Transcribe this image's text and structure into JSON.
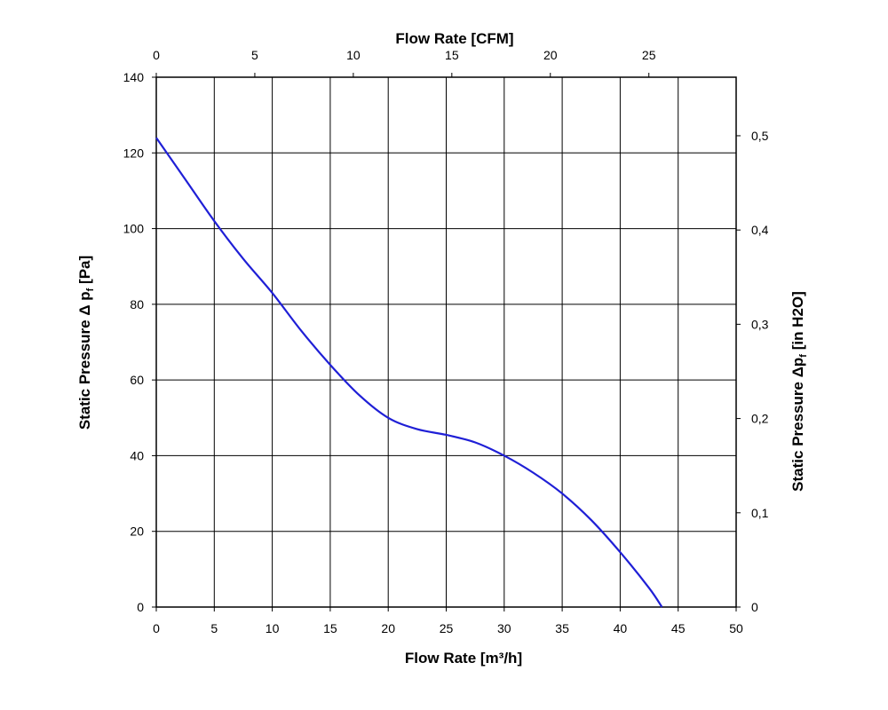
{
  "chart_data": {
    "type": "line",
    "xlabel": "Flow Rate [m³/h]",
    "x2label": "Flow Rate [CFM]",
    "ylabel": {
      "pre": "Static Pressure Δ p",
      "sub": "f",
      "post": " [Pa]"
    },
    "y2label": {
      "pre": "Static Pressure Δp",
      "sub": "f",
      "post": " [in H2O]"
    },
    "xlim": [
      0,
      50
    ],
    "ylim": [
      0,
      140
    ],
    "x2lim": [
      0,
      29.43
    ],
    "y2lim": [
      0,
      0.5621
    ],
    "xticks": [
      "0",
      "5",
      "10",
      "15",
      "20",
      "25",
      "30",
      "35",
      "40",
      "45",
      "50"
    ],
    "yticks": [
      "0",
      "20",
      "40",
      "60",
      "80",
      "100",
      "120",
      "140"
    ],
    "x2ticks": [
      {
        "value": 0,
        "label": "0"
      },
      {
        "value": 5,
        "label": "5"
      },
      {
        "value": 10,
        "label": "10"
      },
      {
        "value": 15,
        "label": "15"
      },
      {
        "value": 20,
        "label": "20"
      },
      {
        "value": 25,
        "label": "25"
      }
    ],
    "y2ticks": [
      {
        "value": 0,
        "label": "0"
      },
      {
        "value": 0.1,
        "label": "0,1"
      },
      {
        "value": 0.2,
        "label": "0,2"
      },
      {
        "value": 0.3,
        "label": "0,3"
      },
      {
        "value": 0.4,
        "label": "0,4"
      },
      {
        "value": 0.5,
        "label": "0,5"
      }
    ],
    "grid": true,
    "line_color": "#1f1fd6",
    "series": [
      {
        "x": [
          0,
          2.5,
          5,
          7.5,
          10,
          12.5,
          15,
          17.5,
          20,
          22.5,
          25,
          27.5,
          30,
          32.5,
          35,
          37.5,
          40,
          42.5,
          43.6
        ],
        "y": [
          124,
          113,
          102,
          92,
          83,
          73,
          64,
          56,
          50,
          47,
          45.5,
          43.5,
          40,
          35.5,
          30,
          23,
          14.5,
          5,
          0
        ]
      }
    ]
  }
}
